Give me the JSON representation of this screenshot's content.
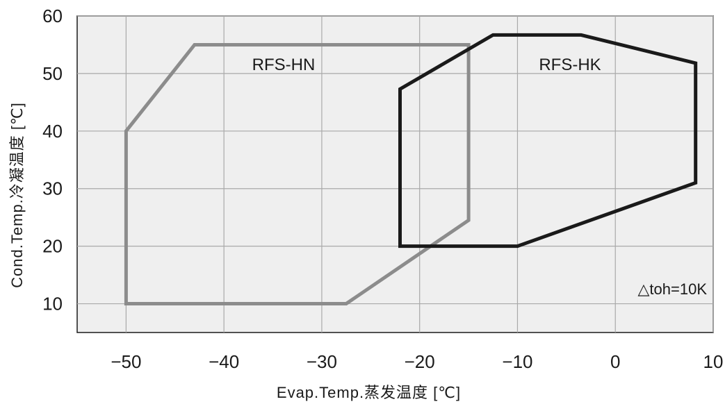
{
  "chart_data": {
    "type": "line",
    "xlabel": "Evap.Temp.蒸发温度 [℃]",
    "ylabel": "Cond.Temp.冷凝温度 [℃]",
    "xlim": [
      -55,
      10
    ],
    "ylim": [
      5,
      60
    ],
    "xticks": [
      -50,
      -40,
      -30,
      -20,
      -10,
      0,
      10
    ],
    "xtick_labels": [
      "−50",
      "−40",
      "−30",
      "−20",
      "−10",
      "0",
      "10"
    ],
    "yticks": [
      10,
      20,
      30,
      40,
      50,
      60
    ],
    "ytick_labels": [
      "10",
      "20",
      "30",
      "40",
      "50",
      "60"
    ],
    "grid": true,
    "annotation": "△toh=10K",
    "series": [
      {
        "name": "RFS-HN",
        "color": "#8c8c8c",
        "points": [
          [
            -50,
            10
          ],
          [
            -50,
            40
          ],
          [
            -43,
            55
          ],
          [
            -15,
            55
          ],
          [
            -15,
            24.5
          ],
          [
            -27.5,
            10
          ],
          [
            -50,
            10
          ]
        ]
      },
      {
        "name": "RFS-HK",
        "color": "#1a1a1a",
        "points": [
          [
            -22,
            20
          ],
          [
            -22,
            47.3
          ],
          [
            -12.5,
            56.7
          ],
          [
            -3.5,
            56.7
          ],
          [
            8.2,
            51.8
          ],
          [
            8.2,
            31
          ],
          [
            -10,
            20
          ],
          [
            -22,
            20
          ]
        ]
      }
    ]
  }
}
